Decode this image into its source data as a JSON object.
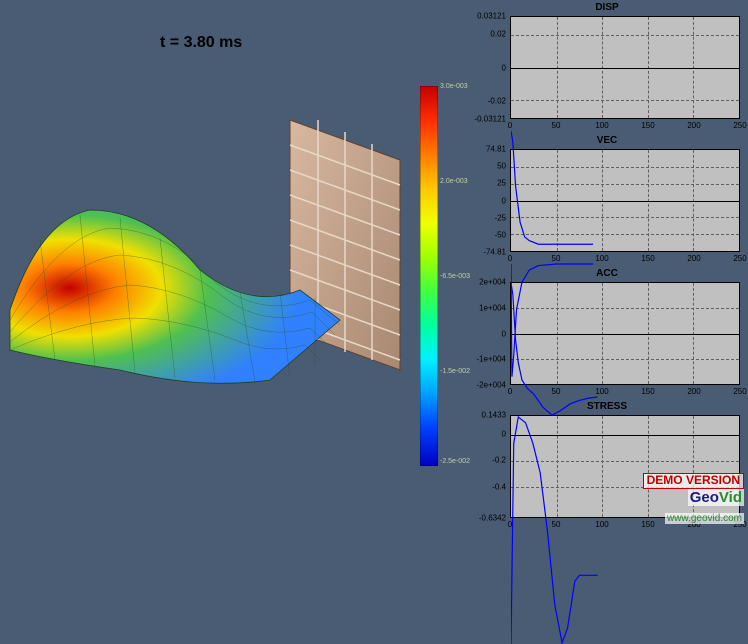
{
  "time_label": "t = 3.80 ms",
  "colorbar": {
    "gradient": [
      "#c40000",
      "#ff2d00",
      "#ff7b00",
      "#ffc700",
      "#f0ff00",
      "#a0ff00",
      "#40ff40",
      "#00ffa0",
      "#00f0ff",
      "#00a0ff",
      "#0040ff",
      "#0000c0"
    ],
    "labels": [
      "3.0e-003",
      "2.0e-003",
      "-6.5e-003",
      "-1.5e-002",
      "-2.5e-002"
    ]
  },
  "scene3d": {
    "mesh_colors": {
      "high": "#c40000",
      "mid": "#40c040",
      "low": "#2060ff"
    },
    "wall": {
      "brick_light": "#d0a890",
      "brick_dark": "#b08878",
      "mortar": "#e8d8c8"
    }
  },
  "charts": [
    {
      "title": "DISP",
      "ylim": [
        -0.03121,
        0.03121
      ],
      "yticks": [
        0.03121,
        0.02,
        0,
        -0.02,
        -0.03121
      ],
      "xlim": [
        0,
        250
      ],
      "xticks": [
        0,
        50,
        100,
        150,
        200,
        250
      ],
      "line_color": "#0000ff",
      "series": [
        [
          0,
          0
        ],
        [
          2,
          -0.003
        ],
        [
          5,
          -0.015
        ],
        [
          10,
          -0.025
        ],
        [
          15,
          -0.029
        ],
        [
          20,
          -0.03
        ],
        [
          30,
          -0.031
        ],
        [
          50,
          -0.031
        ],
        [
          70,
          -0.031
        ],
        [
          90,
          -0.031
        ]
      ]
    },
    {
      "title": "VEC",
      "ylim": [
        -74.81,
        74.81
      ],
      "yticks": [
        74.81,
        50,
        25,
        0,
        -25,
        -50,
        -74.81
      ],
      "xlim": [
        0,
        250
      ],
      "xticks": [
        0,
        50,
        100,
        150,
        200,
        250
      ],
      "line_color": "#0000ff",
      "series": [
        [
          0,
          0
        ],
        [
          1,
          -74
        ],
        [
          3,
          -60
        ],
        [
          6,
          -30
        ],
        [
          12,
          -12
        ],
        [
          20,
          -4
        ],
        [
          30,
          -1
        ],
        [
          50,
          0
        ],
        [
          80,
          0
        ],
        [
          90,
          0
        ]
      ]
    },
    {
      "title": "ACC",
      "ylim": [
        -20000,
        20000
      ],
      "yticks": [
        20000,
        10000,
        0,
        -10000,
        -20000
      ],
      "ytick_labels": [
        "2e+004",
        "1e+004",
        "0",
        "-1e+004",
        "-2e+004"
      ],
      "xlim": [
        0,
        250
      ],
      "xticks": [
        0,
        50,
        100,
        150,
        200,
        250
      ],
      "line_color": "#0000ff",
      "series": [
        [
          0,
          20000
        ],
        [
          2,
          18000
        ],
        [
          5,
          10000
        ],
        [
          8,
          6000
        ],
        [
          12,
          3000
        ],
        [
          18,
          1500
        ],
        [
          25,
          500
        ],
        [
          35,
          -1800
        ],
        [
          45,
          -3200
        ],
        [
          55,
          -2300
        ],
        [
          65,
          -1200
        ],
        [
          75,
          -600
        ],
        [
          85,
          -200
        ],
        [
          95,
          0
        ]
      ]
    },
    {
      "title": "STRESS",
      "ylim": [
        -0.6342,
        0.1433
      ],
      "yticks": [
        0.1433,
        0,
        -0.2,
        -0.4,
        -0.6342
      ],
      "xlim": [
        0,
        250
      ],
      "xticks": [
        0,
        50,
        100,
        150,
        200,
        250
      ],
      "line_color": "#0000ff",
      "series": [
        [
          0,
          -0.6342
        ],
        [
          3,
          0.05
        ],
        [
          8,
          0.14
        ],
        [
          16,
          0.12
        ],
        [
          24,
          0.05
        ],
        [
          32,
          -0.05
        ],
        [
          40,
          -0.25
        ],
        [
          48,
          -0.5
        ],
        [
          56,
          -0.63
        ],
        [
          62,
          -0.58
        ],
        [
          70,
          -0.42
        ],
        [
          75,
          -0.4
        ],
        [
          85,
          -0.4
        ],
        [
          95,
          -0.4
        ]
      ]
    }
  ],
  "watermark": {
    "line1": "DEMO VERSION",
    "line2a": "Geo",
    "line2b": "Vid",
    "line3": "www.geovid.com"
  }
}
